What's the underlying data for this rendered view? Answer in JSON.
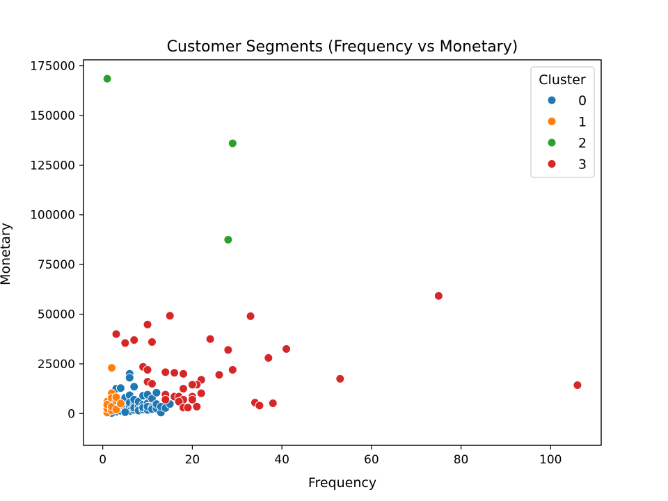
{
  "chart_data": {
    "type": "scatter",
    "title": "Customer Segments (Frequency vs Monetary)",
    "xlabel": "Frequency",
    "ylabel": "Monetary",
    "xlim": [
      -4.3,
      111.3
    ],
    "ylim": [
      -16000,
      178000
    ],
    "xticks": [
      0,
      20,
      40,
      60,
      80,
      100
    ],
    "yticks": [
      0,
      25000,
      50000,
      75000,
      100000,
      125000,
      150000,
      175000
    ],
    "grid": false,
    "legend": {
      "title": "Cluster",
      "placement": "top-right"
    },
    "series": [
      {
        "name": "0",
        "color": "#1f77b4",
        "points": [
          [
            1,
            1500
          ],
          [
            1,
            3000
          ],
          [
            1,
            4200
          ],
          [
            1,
            800
          ],
          [
            2,
            2200
          ],
          [
            2,
            3500
          ],
          [
            2,
            1200
          ],
          [
            2,
            5000
          ],
          [
            3,
            1800
          ],
          [
            3,
            2600
          ],
          [
            3,
            4000
          ],
          [
            3,
            900
          ],
          [
            3,
            12500
          ],
          [
            3,
            5800
          ],
          [
            4,
            2000
          ],
          [
            4,
            3200
          ],
          [
            4,
            1400
          ],
          [
            4,
            12800
          ],
          [
            4,
            6500
          ],
          [
            5,
            1500
          ],
          [
            5,
            2800
          ],
          [
            5,
            4500
          ],
          [
            5,
            8000
          ],
          [
            5,
            900
          ],
          [
            6,
            2500
          ],
          [
            6,
            3800
          ],
          [
            6,
            1200
          ],
          [
            6,
            9200
          ],
          [
            6,
            20000
          ],
          [
            6,
            18000
          ],
          [
            6,
            5500
          ],
          [
            7,
            1800
          ],
          [
            7,
            4200
          ],
          [
            7,
            13500
          ],
          [
            7,
            2900
          ],
          [
            7,
            7000
          ],
          [
            8,
            2400
          ],
          [
            8,
            3600
          ],
          [
            8,
            6000
          ],
          [
            8,
            1500
          ],
          [
            9,
            2000
          ],
          [
            9,
            4500
          ],
          [
            9,
            9000
          ],
          [
            9,
            3000
          ],
          [
            10,
            2800
          ],
          [
            10,
            5200
          ],
          [
            10,
            9500
          ],
          [
            10,
            1800
          ],
          [
            10,
            3500
          ],
          [
            11,
            3000
          ],
          [
            11,
            7500
          ],
          [
            11,
            2200
          ],
          [
            12,
            2500
          ],
          [
            12,
            10500
          ],
          [
            12,
            4800
          ],
          [
            13,
            500
          ],
          [
            13,
            3500
          ],
          [
            14,
            2800
          ],
          [
            15,
            4800
          ],
          [
            1,
            1000
          ],
          [
            2,
            300
          ],
          [
            5,
            700
          ]
        ]
      },
      {
        "name": "1",
        "color": "#ff7f0e",
        "points": [
          [
            1,
            500
          ],
          [
            1,
            2500
          ],
          [
            1,
            6000
          ],
          [
            1,
            4500
          ],
          [
            2,
            1500
          ],
          [
            2,
            3500
          ],
          [
            2,
            10200
          ],
          [
            2,
            23000
          ],
          [
            2,
            7800
          ],
          [
            3,
            2000
          ],
          [
            3,
            6500
          ],
          [
            3,
            8200
          ],
          [
            4,
            5000
          ]
        ]
      },
      {
        "name": "2",
        "color": "#2ca02c",
        "points": [
          [
            1,
            168500
          ],
          [
            29,
            136000
          ],
          [
            28,
            87500
          ]
        ]
      },
      {
        "name": "3",
        "color": "#d62728",
        "points": [
          [
            3,
            40000
          ],
          [
            5,
            35500
          ],
          [
            7,
            37000
          ],
          [
            10,
            44800
          ],
          [
            11,
            36000
          ],
          [
            15,
            49200
          ],
          [
            9,
            23500
          ],
          [
            10,
            22000
          ],
          [
            10,
            16000
          ],
          [
            11,
            15000
          ],
          [
            14,
            20800
          ],
          [
            16,
            20500
          ],
          [
            18,
            20000
          ],
          [
            22,
            17000
          ],
          [
            21,
            14500
          ],
          [
            20,
            14500
          ],
          [
            18,
            12500
          ],
          [
            14,
            9500
          ],
          [
            14,
            7000
          ],
          [
            16,
            8500
          ],
          [
            17,
            8500
          ],
          [
            18,
            7000
          ],
          [
            17,
            6000
          ],
          [
            18,
            3000
          ],
          [
            19,
            3000
          ],
          [
            20,
            8500
          ],
          [
            20,
            7000
          ],
          [
            21,
            3500
          ],
          [
            22,
            10200
          ],
          [
            24,
            37500
          ],
          [
            26,
            19500
          ],
          [
            28,
            32000
          ],
          [
            29,
            22000
          ],
          [
            33,
            49000
          ],
          [
            34,
            5500
          ],
          [
            35,
            4000
          ],
          [
            37,
            28000
          ],
          [
            38,
            5200
          ],
          [
            41,
            32500
          ],
          [
            53,
            17500
          ],
          [
            75,
            59200
          ],
          [
            106,
            14300
          ]
        ]
      }
    ]
  }
}
